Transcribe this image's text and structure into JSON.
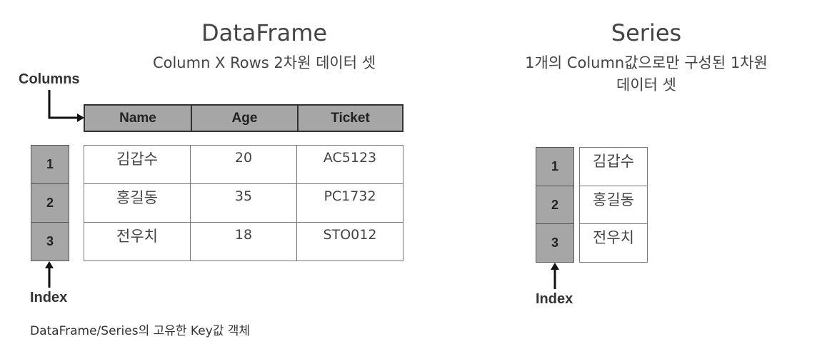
{
  "dataframe": {
    "title": "DataFrame",
    "subtitle": "Column X Rows 2차원 데이터 셋",
    "columns_label": "Columns",
    "index_label": "Index",
    "columns": [
      "Name",
      "Age",
      "Ticket"
    ],
    "index": [
      "1",
      "2",
      "3"
    ],
    "rows": [
      [
        "김갑수",
        "20",
        "AC5123"
      ],
      [
        "홍길동",
        "35",
        "PC1732"
      ],
      [
        "전우치",
        "18",
        "STO012"
      ]
    ],
    "footnote": "DataFrame/Series의 고유한 Key값 객체"
  },
  "series": {
    "title": "Series",
    "subtitle_line1": "1개의 Column값으로만 구성된 1차원",
    "subtitle_line2": "데이터 셋",
    "index_label": "Index",
    "index": [
      "1",
      "2",
      "3"
    ],
    "values": [
      "김갑수",
      "홍길동",
      "전우치"
    ]
  },
  "colors": {
    "header_fill": "#a6a6a6",
    "border_dark": "#333333",
    "text": "#444444"
  }
}
